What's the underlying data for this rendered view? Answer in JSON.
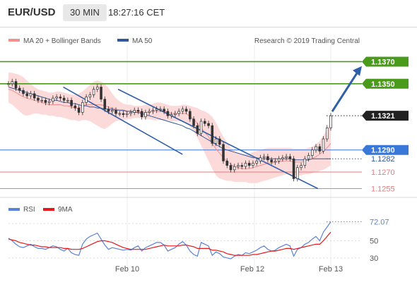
{
  "header": {
    "symbol": "EUR/USD",
    "timeframe": "30 MIN",
    "time": "18:27:16 CET"
  },
  "legend": {
    "ma20_bb": "MA 20 + Bollinger Bands",
    "ma50": "MA 50",
    "credit": "Research © 2019 Trading Central",
    "rsi": "RSI",
    "rsi_ma": "9MA"
  },
  "colors": {
    "green": "#4a9a1c",
    "blue": "#3a78d8",
    "red": "#e87a7a",
    "black": "#222222",
    "bollinger_fill": "#fbd3d3",
    "ma20": "#f09090",
    "ma50": "#31599a",
    "trend_arrow": "#2f5fa8",
    "rsi": "#5b82d6",
    "rsi_ma": "#e81818"
  },
  "chart_data": {
    "type": "line",
    "title": "EUR/USD 30 MIN",
    "x_ticks": [
      "Feb 10",
      "Feb 12",
      "Feb 13"
    ],
    "y_range": [
      1.1247,
      1.1385
    ],
    "levels": [
      {
        "label": "1.1370",
        "value": 1.137,
        "style": "resistance",
        "color": "#4a9a1c"
      },
      {
        "label": "1.1350",
        "value": 1.135,
        "style": "resistance",
        "color": "#4a9a1c"
      },
      {
        "label": "1.1321",
        "value": 1.1321,
        "style": "last",
        "color": "#222222"
      },
      {
        "label": "1.1290",
        "value": 1.129,
        "style": "pivot",
        "color": "#3a78d8"
      },
      {
        "label": "1.1282",
        "value": 1.1282,
        "style": "ma",
        "color": "#31599a"
      },
      {
        "label": "1.1270",
        "value": 1.127,
        "style": "support",
        "color": "#e87a7a"
      },
      {
        "label": "1.1255",
        "value": 1.1255,
        "style": "support",
        "color": "#e87a7a"
      }
    ],
    "price_series": [
      1.135,
      1.1352,
      1.1346,
      1.1344,
      1.1341,
      1.1339,
      1.1341,
      1.1337,
      1.1335,
      1.1335,
      1.1333,
      1.1334,
      1.1337,
      1.1338,
      1.1337,
      1.1335,
      1.1335,
      1.133,
      1.1328,
      1.1324,
      1.1333,
      1.1338,
      1.134,
      1.1345,
      1.1347,
      1.1336,
      1.1327,
      1.1325,
      1.1326,
      1.1323,
      1.1323,
      1.1322,
      1.1323,
      1.1324,
      1.1326,
      1.1325,
      1.132,
      1.1324,
      1.1325,
      1.1326,
      1.1327,
      1.1327,
      1.1325,
      1.1321,
      1.1322,
      1.1323,
      1.1325,
      1.1327,
      1.1325,
      1.1318,
      1.1312,
      1.1305,
      1.1316,
      1.1314,
      1.1312,
      1.1296,
      1.13,
      1.1295,
      1.128,
      1.1276,
      1.1272,
      1.1275,
      1.1276,
      1.1275,
      1.1278,
      1.1276,
      1.1278,
      1.128,
      1.1283,
      1.1284,
      1.1281,
      1.1279,
      1.128,
      1.1282,
      1.1283,
      1.1284,
      1.1282,
      1.1264,
      1.1274,
      1.1276,
      1.1282,
      1.1285,
      1.129,
      1.1293,
      1.1289,
      1.13,
      1.131,
      1.1321
    ],
    "ma20": [
      1.1345,
      1.1344,
      1.1342,
      1.134,
      1.1338,
      1.1337,
      1.1336,
      1.1335,
      1.1334,
      1.1333,
      1.1332,
      1.1331,
      1.1331,
      1.1331,
      1.1331,
      1.133,
      1.133,
      1.1329,
      1.1328,
      1.1328,
      1.133,
      1.1331,
      1.1331,
      1.1331,
      1.1331,
      1.1331,
      1.133,
      1.1329,
      1.1328,
      1.1327,
      1.1326,
      1.1325,
      1.1325,
      1.1325,
      1.1325,
      1.1325,
      1.1324,
      1.1324,
      1.1324,
      1.1325,
      1.1325,
      1.1325,
      1.1325,
      1.1324,
      1.1323,
      1.1323,
      1.1323,
      1.1323,
      1.1323,
      1.132,
      1.1318,
      1.1314,
      1.131,
      1.1306,
      1.1302,
      1.1296,
      1.1291,
      1.1287,
      1.1283,
      1.128,
      1.1277,
      1.1275,
      1.1274,
      1.1273,
      1.1273,
      1.1273,
      1.1274,
      1.1275,
      1.1276,
      1.1277,
      1.1278,
      1.1278,
      1.1279,
      1.1279,
      1.128,
      1.128,
      1.128,
      1.1279,
      1.1279,
      1.1279,
      1.128,
      1.1281,
      1.1282,
      1.1284,
      1.1286,
      1.1289,
      1.1292,
      1.1296
    ],
    "ma50": [
      1.1347,
      1.1346,
      1.1345,
      1.1344,
      1.1343,
      1.1342,
      1.1341,
      1.134,
      1.1339,
      1.1338,
      1.1337,
      1.1336,
      1.1335,
      1.1335,
      1.1334,
      1.1333,
      1.1333,
      1.1332,
      1.1332,
      1.1331,
      1.133,
      1.133,
      1.1329,
      1.1329,
      1.1328,
      1.1328,
      1.1327,
      1.1327,
      1.1327,
      1.1326,
      1.1326,
      1.1326,
      1.1325,
      1.1325,
      1.1324,
      1.1324,
      1.1323,
      1.1322,
      1.1321,
      1.132,
      1.1319,
      1.1318,
      1.1317,
      1.1316,
      1.1315,
      1.1314,
      1.1313,
      1.1312,
      1.131,
      1.1309,
      1.1307,
      1.1305,
      1.1303,
      1.1301,
      1.1299,
      1.1297,
      1.1295,
      1.1293,
      1.1291,
      1.129,
      1.1289,
      1.1288,
      1.1287,
      1.1286,
      1.1285,
      1.1284,
      1.1283,
      1.1283,
      1.1282,
      1.1282,
      1.1282,
      1.1282,
      1.1282,
      1.1282,
      1.1282,
      1.1282,
      1.1282,
      1.1281,
      1.1281,
      1.1281,
      1.1281,
      1.1281,
      1.1282,
      1.1282,
      1.1282,
      1.1282,
      1.1282,
      1.1282
    ],
    "bb_upper": [
      1.136,
      1.136,
      1.1359,
      1.1358,
      1.1356,
      1.1353,
      1.135,
      1.1347,
      1.1345,
      1.1344,
      1.1343,
      1.1342,
      1.1342,
      1.1343,
      1.1343,
      1.1342,
      1.1341,
      1.134,
      1.134,
      1.1341,
      1.1343,
      1.1346,
      1.1349,
      1.1352,
      1.1353,
      1.1352,
      1.135,
      1.1346,
      1.1341,
      1.1337,
      1.1334,
      1.1332,
      1.1331,
      1.1331,
      1.133,
      1.133,
      1.133,
      1.1331,
      1.1331,
      1.1332,
      1.1333,
      1.1333,
      1.1332,
      1.1331,
      1.133,
      1.133,
      1.133,
      1.1331,
      1.1331,
      1.133,
      1.1329,
      1.1328,
      1.1326,
      1.1325,
      1.1323,
      1.132,
      1.1315,
      1.1308,
      1.1302,
      1.1297,
      1.1292,
      1.1289,
      1.1287,
      1.1286,
      1.1286,
      1.1287,
      1.1288,
      1.1289,
      1.129,
      1.1291,
      1.1292,
      1.1292,
      1.1292,
      1.1292,
      1.1292,
      1.1292,
      1.1292,
      1.1291,
      1.1291,
      1.1291,
      1.1291,
      1.1292,
      1.1293,
      1.1295,
      1.1298,
      1.1303,
      1.1309,
      1.1315
    ],
    "bb_lower": [
      1.1333,
      1.1331,
      1.1328,
      1.1325,
      1.1322,
      1.1321,
      1.1322,
      1.1323,
      1.1323,
      1.1322,
      1.1322,
      1.1321,
      1.1321,
      1.132,
      1.132,
      1.1319,
      1.1318,
      1.1317,
      1.1317,
      1.1316,
      1.1317,
      1.1317,
      1.1316,
      1.1314,
      1.1312,
      1.131,
      1.1309,
      1.1311,
      1.1314,
      1.1316,
      1.1317,
      1.1317,
      1.1318,
      1.1318,
      1.1319,
      1.1319,
      1.1319,
      1.1318,
      1.1318,
      1.1317,
      1.1317,
      1.1317,
      1.1317,
      1.1317,
      1.1316,
      1.1316,
      1.1316,
      1.1316,
      1.1315,
      1.1311,
      1.1307,
      1.1301,
      1.1294,
      1.1287,
      1.128,
      1.1273,
      1.1267,
      1.1264,
      1.1263,
      1.1262,
      1.1262,
      1.1261,
      1.1261,
      1.1261,
      1.1261,
      1.126,
      1.126,
      1.126,
      1.1261,
      1.1262,
      1.1263,
      1.1264,
      1.1265,
      1.1266,
      1.1267,
      1.1268,
      1.1268,
      1.1267,
      1.1267,
      1.1267,
      1.1268,
      1.1268,
      1.1269,
      1.127,
      1.1271,
      1.1272,
      1.1274,
      1.1276
    ],
    "channel": {
      "upper": [
        [
          0.17,
          1.1347
        ],
        [
          0.54,
          1.1286
        ]
      ],
      "lower": [
        [
          0.34,
          1.1345
        ],
        [
          0.96,
          1.1255
        ]
      ]
    },
    "rsi": {
      "y_ticks": [
        50,
        30
      ],
      "last_label": "72.07",
      "values": [
        53,
        50,
        46,
        43,
        42,
        44,
        46,
        43,
        41,
        41,
        40,
        42,
        44,
        43,
        40,
        38,
        41,
        36,
        34,
        33,
        46,
        52,
        55,
        57,
        59,
        52,
        45,
        40,
        42,
        41,
        40,
        39,
        40,
        39,
        42,
        44,
        38,
        42,
        44,
        46,
        48,
        48,
        45,
        38,
        40,
        42,
        46,
        49,
        45,
        38,
        34,
        32,
        48,
        46,
        44,
        33,
        37,
        35,
        31,
        30,
        29,
        32,
        34,
        33,
        36,
        35,
        37,
        39,
        42,
        44,
        40,
        38,
        39,
        42,
        44,
        46,
        44,
        32,
        40,
        42,
        46,
        48,
        52,
        55,
        50,
        60,
        66,
        72.07
      ],
      "ma9": [
        52,
        51,
        50,
        48,
        47,
        46,
        45,
        45,
        44,
        43,
        43,
        42,
        42,
        42,
        42,
        41,
        41,
        40,
        40,
        40,
        41,
        43,
        45,
        47,
        49,
        50,
        50,
        49,
        48,
        46,
        44,
        42,
        41,
        40,
        40,
        40,
        40,
        40,
        41,
        42,
        43,
        44,
        45,
        44,
        44,
        44,
        44,
        45,
        45,
        44,
        43,
        41,
        41,
        41,
        41,
        39,
        39,
        38,
        37,
        35,
        34,
        33,
        33,
        33,
        33,
        33,
        34,
        34,
        35,
        36,
        37,
        38,
        38,
        39,
        40,
        41,
        41,
        40,
        41,
        42,
        43,
        44,
        45,
        46,
        46,
        50,
        55,
        60
      ]
    }
  }
}
